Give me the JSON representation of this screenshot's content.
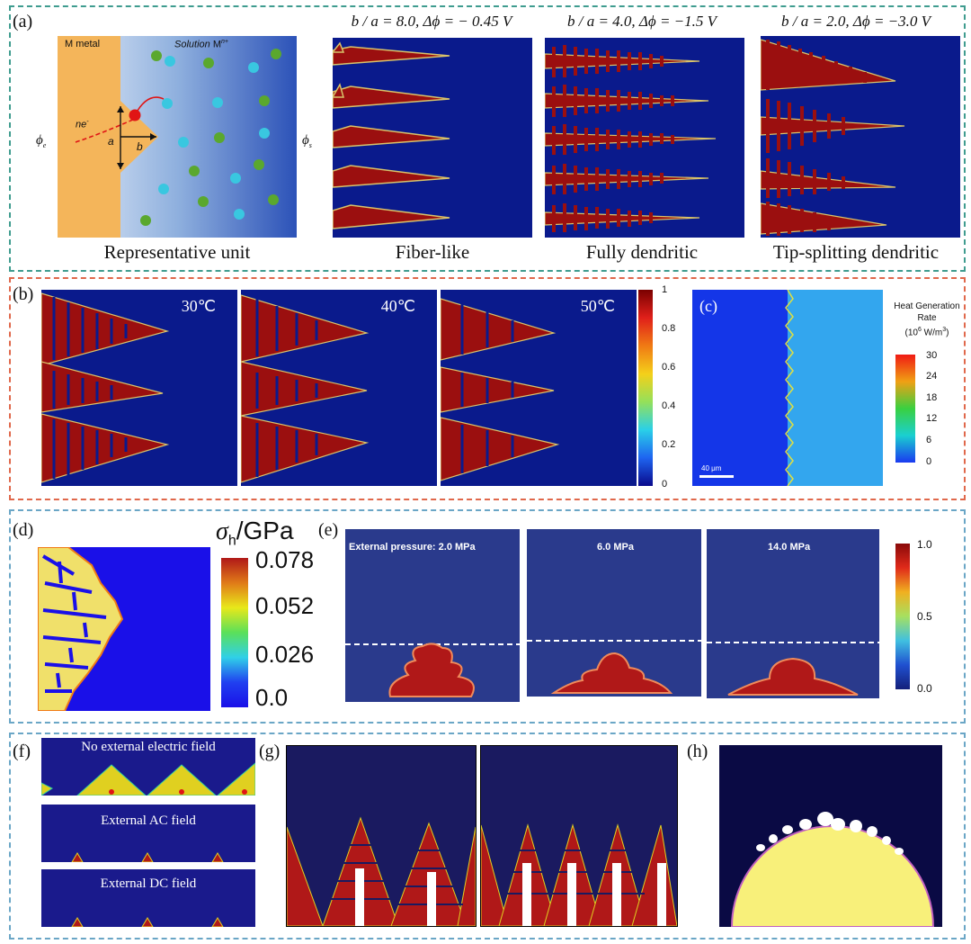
{
  "panels": {
    "a": {
      "tag": "(a)",
      "schematic": {
        "metal_label": "M  metal",
        "solution_label": "Solution",
        "solution_ion": "M",
        "solution_ion_sup": "n+",
        "phi_e": "ϕ",
        "phi_e_sub": "e",
        "phi_s": "ϕ",
        "phi_s_sub": "s",
        "ne_label": "ne",
        "ne_sup": "-",
        "a_label": "a",
        "b_label": "b",
        "caption": "Representative unit"
      },
      "cases": [
        {
          "header": "b / a = 8.0,  Δϕ = − 0.45 V",
          "caption": "Fiber-like"
        },
        {
          "header": "b / a = 4.0,  Δϕ = −1.5 V",
          "caption": "Fully dendritic"
        },
        {
          "header": "b / a = 2.0,  Δϕ = −3.0 V",
          "caption": "Tip-splitting dendritic"
        }
      ]
    },
    "b": {
      "tag": "(b)",
      "temperatures": [
        "30℃",
        "40℃",
        "50℃"
      ],
      "colorbar_ticks": [
        "1",
        "0.8",
        "0.6",
        "0.4",
        "0.2",
        "0"
      ]
    },
    "c": {
      "tag": "(c)",
      "title_line1": "Heat Generation",
      "title_line2": "Rate",
      "unit_prefix": "(10",
      "unit_exp": "6",
      "unit_mid": " W/m",
      "unit_exp2": "3",
      "unit_suffix": ")",
      "colorbar_ticks": [
        "30",
        "24",
        "18",
        "12",
        "6",
        "0"
      ],
      "scale_bar": "40 μm"
    },
    "d": {
      "tag": "(d)",
      "title_symbol": "σ",
      "title_sub": "h",
      "title_unit": "/GPa",
      "colorbar_ticks": [
        "0.078",
        "0.052",
        "0.026",
        "0.0"
      ]
    },
    "e": {
      "tag": "(e)",
      "pressures": [
        "External pressure: 2.0 MPa",
        "6.0 MPa",
        "14.0 MPa"
      ],
      "colorbar_ticks": [
        "1.0",
        "0.5",
        "0.0"
      ]
    },
    "f": {
      "tag": "(f)",
      "labels": [
        "No external electric field",
        "External AC field",
        "External DC field"
      ]
    },
    "g": {
      "tag": "(g)"
    },
    "h": {
      "tag": "(h)"
    }
  },
  "colors": {
    "panel_a_border": "#3f9c8f",
    "panel_b_border": "#e0684b",
    "panel_de_border": "#6aa6c6",
    "panel_fgh_border": "#6aa6c6",
    "sim_background": "#0a1a8c",
    "dendrite": "#9b0f0f",
    "dendrite_edge": "#d8c36a"
  }
}
